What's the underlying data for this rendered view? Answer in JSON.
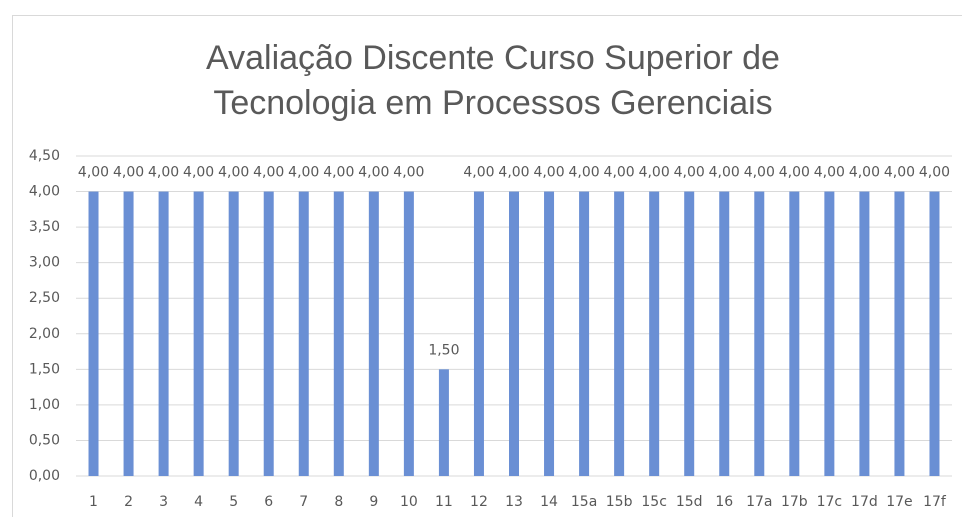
{
  "chart_data": {
    "type": "bar",
    "title": "Avaliação Discente Curso Superior de Tecnologia em Processos Gerenciais",
    "categories": [
      "1",
      "2",
      "3",
      "4",
      "5",
      "6",
      "7",
      "8",
      "9",
      "10",
      "11",
      "12",
      "13",
      "14",
      "15a",
      "15b",
      "15c",
      "15d",
      "16",
      "17a",
      "17b",
      "17c",
      "17d",
      "17e",
      "17f"
    ],
    "values": [
      4,
      4,
      4,
      4,
      4,
      4,
      4,
      4,
      4,
      4,
      1.5,
      4,
      4,
      4,
      4,
      4,
      4,
      4,
      4,
      4,
      4,
      4,
      4,
      4,
      4
    ],
    "value_labels": [
      "4,00",
      "4,00",
      "4,00",
      "4,00",
      "4,00",
      "4,00",
      "4,00",
      "4,00",
      "4,00",
      "4,00",
      "1,50",
      "4,00",
      "4,00",
      "4,00",
      "4,00",
      "4,00",
      "4,00",
      "4,00",
      "4,00",
      "4,00",
      "4,00",
      "4,00",
      "4,00",
      "4,00",
      "4,00"
    ],
    "color": "#6a8fd4",
    "ylim": [
      0,
      4.5
    ],
    "yticks": [
      {
        "value": 0,
        "label": "0,00"
      },
      {
        "value": 0.5,
        "label": "0,50"
      },
      {
        "value": 1,
        "label": "1,00"
      },
      {
        "value": 1.5,
        "label": "1,50"
      },
      {
        "value": 2,
        "label": "2,00"
      },
      {
        "value": 2.5,
        "label": "2,50"
      },
      {
        "value": 3,
        "label": "3,00"
      },
      {
        "value": 3.5,
        "label": "3,50"
      },
      {
        "value": 4,
        "label": "4,00"
      },
      {
        "value": 4.5,
        "label": "4,50"
      }
    ],
    "grid": true
  }
}
